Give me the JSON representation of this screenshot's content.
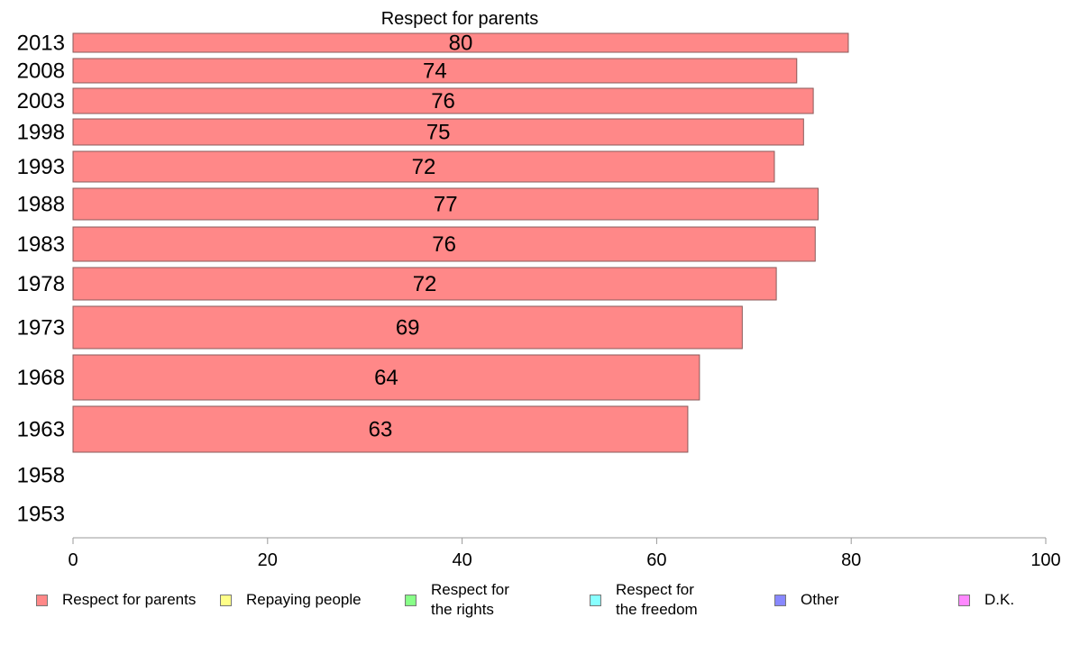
{
  "chart_data": {
    "type": "bar",
    "orientation": "horizontal",
    "title": "Respect for parents",
    "categories": [
      "2013",
      "2008",
      "2003",
      "1998",
      "1993",
      "1988",
      "1983",
      "1978",
      "1973",
      "1968",
      "1963",
      "1958",
      "1953"
    ],
    "values": [
      79.7,
      74.4,
      76.1,
      75.1,
      72.1,
      76.6,
      76.3,
      72.3,
      68.8,
      64.4,
      63.2,
      null,
      null
    ],
    "data_labels": [
      "80",
      "74",
      "76",
      "75",
      "72",
      "77",
      "76",
      "72",
      "69",
      "64",
      "63",
      "",
      ""
    ],
    "xlim": [
      0,
      100
    ],
    "xticks": [
      0,
      20,
      40,
      60,
      80,
      100
    ],
    "grid": false,
    "bar_color": "#ff8888",
    "bar_border_color": "#8a5a5a",
    "legend": [
      {
        "label": "Respect for parents",
        "color": "#ff8888"
      },
      {
        "label": "Repaying people",
        "color": "#ffff88"
      },
      {
        "label": "Respect for\nthe rights",
        "color": "#88ff88"
      },
      {
        "label": "Respect for\nthe freedom",
        "color": "#88ffff"
      },
      {
        "label": "Other",
        "color": "#8888ff"
      },
      {
        "label": "D.K.",
        "color": "#ff88ff"
      }
    ],
    "legend_position": "bottom"
  }
}
